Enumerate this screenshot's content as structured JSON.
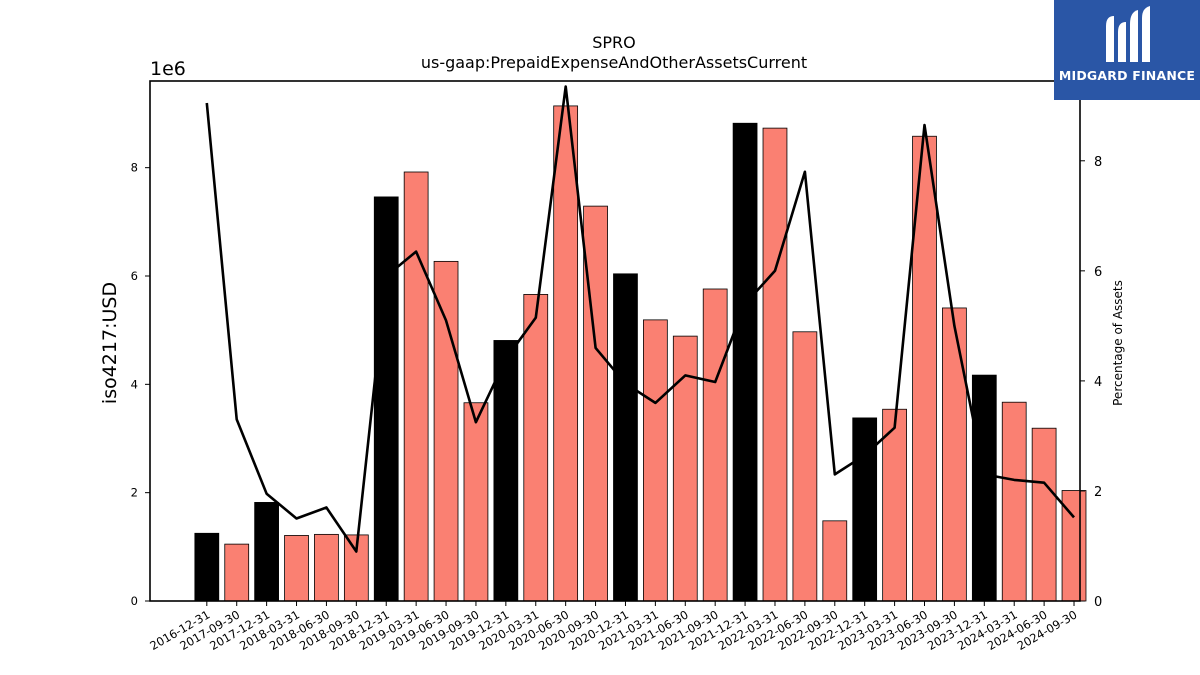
{
  "chart_data": {
    "type": "bar",
    "title": "SPRO",
    "subtitle": "us-gaap:PrepaidExpenseAndOtherAssetsCurrent",
    "ylabel": "iso4217:USD",
    "y_multiplier_label": "1e6",
    "y2label": "Percentage of Assets",
    "ylim": [
      0,
      9600000
    ],
    "y2lim": [
      0,
      9.45
    ],
    "yticks": [
      0,
      2,
      4,
      6,
      8
    ],
    "y2ticks": [
      0,
      2,
      4,
      6,
      8
    ],
    "categories": [
      "2016-12-31",
      "2017-09-30",
      "2017-12-31",
      "2018-03-31",
      "2018-06-30",
      "2018-09-30",
      "2018-12-31",
      "2019-03-31",
      "2019-06-30",
      "2019-09-30",
      "2019-12-31",
      "2020-03-31",
      "2020-06-30",
      "2020-09-30",
      "2020-12-31",
      "2021-03-31",
      "2021-06-30",
      "2021-09-30",
      "2021-12-31",
      "2022-03-31",
      "2022-06-30",
      "2022-09-30",
      "2022-12-31",
      "2023-03-31",
      "2023-06-30",
      "2023-09-30",
      "2023-12-31",
      "2024-03-31",
      "2024-06-30",
      "2024-09-30"
    ],
    "series": [
      {
        "kind": "bar",
        "values": [
          1250000,
          1050000,
          1820000,
          1210000,
          1230000,
          1220000,
          7460000,
          7920000,
          6270000,
          3660000,
          4810000,
          5660000,
          9140000,
          7290000,
          6040000,
          5190000,
          4890000,
          5760000,
          8820000,
          8730000,
          4970000,
          1480000,
          3380000,
          3540000,
          8580000,
          5410000,
          4170000,
          3670000,
          3190000,
          2040000
        ],
        "colors": [
          "#000000",
          "#fa8072",
          "#000000",
          "#fa8072",
          "#fa8072",
          "#fa8072",
          "#000000",
          "#fa8072",
          "#fa8072",
          "#fa8072",
          "#000000",
          "#fa8072",
          "#fa8072",
          "#fa8072",
          "#000000",
          "#fa8072",
          "#fa8072",
          "#fa8072",
          "#000000",
          "#fa8072",
          "#fa8072",
          "#fa8072",
          "#000000",
          "#fa8072",
          "#fa8072",
          "#fa8072",
          "#000000",
          "#fa8072",
          "#fa8072",
          "#fa8072"
        ]
      },
      {
        "kind": "line",
        "axis": "right",
        "color": "#000000",
        "values": [
          9.05,
          3.3,
          1.95,
          1.5,
          1.7,
          0.9,
          5.9,
          6.35,
          5.1,
          3.25,
          4.4,
          5.15,
          9.35,
          4.6,
          3.95,
          3.6,
          4.1,
          3.98,
          5.4,
          6.0,
          7.8,
          2.3,
          2.65,
          3.15,
          8.65,
          5.0,
          2.3,
          2.2,
          2.15,
          1.52
        ]
      }
    ],
    "grid": false,
    "legend": "none"
  },
  "logo": {
    "text": "MIDGARD FINANCE",
    "icon": "midgard-m-icon",
    "background": "#2a56a6"
  }
}
